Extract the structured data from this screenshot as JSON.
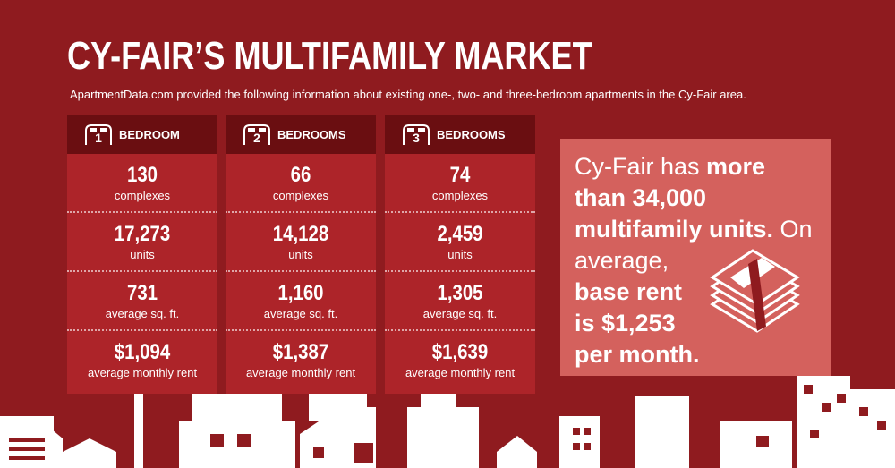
{
  "header": {
    "title": "CY-FAIR’S MULTIFAMILY MARKET",
    "subtitle": "ApartmentData.com provided the following information about existing one-, two- and three-bedroom apartments in the Cy-Fair area."
  },
  "columns": [
    {
      "number": "1",
      "label": "BEDROOM",
      "stats": [
        {
          "value": "130",
          "label": "complexes"
        },
        {
          "value": "17,273",
          "label": "units"
        },
        {
          "value": "731",
          "label": "average sq. ft."
        },
        {
          "value": "$1,094",
          "label": "average monthly rent"
        }
      ]
    },
    {
      "number": "2",
      "label": "BEDROOMS",
      "stats": [
        {
          "value": "66",
          "label": "complexes"
        },
        {
          "value": "14,128",
          "label": "units"
        },
        {
          "value": "1,160",
          "label": "average sq. ft."
        },
        {
          "value": "$1,387",
          "label": "average monthly rent"
        }
      ]
    },
    {
      "number": "3",
      "label": "BEDROOMS",
      "stats": [
        {
          "value": "74",
          "label": "complexes"
        },
        {
          "value": "2,459",
          "label": "units"
        },
        {
          "value": "1,305",
          "label": "average sq. ft."
        },
        {
          "value": "$1,639",
          "label": "average monthly rent"
        }
      ]
    }
  ],
  "callout": {
    "lines": [
      [
        {
          "text": "Cy-Fair has ",
          "bold": false
        },
        {
          "text": "more",
          "bold": true
        }
      ],
      [
        {
          "text": "than 34,000",
          "bold": true
        }
      ],
      [
        {
          "text": "multifamily units.",
          "bold": true
        },
        {
          "text": " On",
          "bold": false
        }
      ],
      [
        {
          "text": "average,",
          "bold": false
        }
      ],
      [
        {
          "text": "base rent",
          "bold": true
        }
      ],
      [
        {
          "text": "is $1,253",
          "bold": true
        }
      ],
      [
        {
          "text": "per month.",
          "bold": true
        }
      ]
    ]
  }
}
